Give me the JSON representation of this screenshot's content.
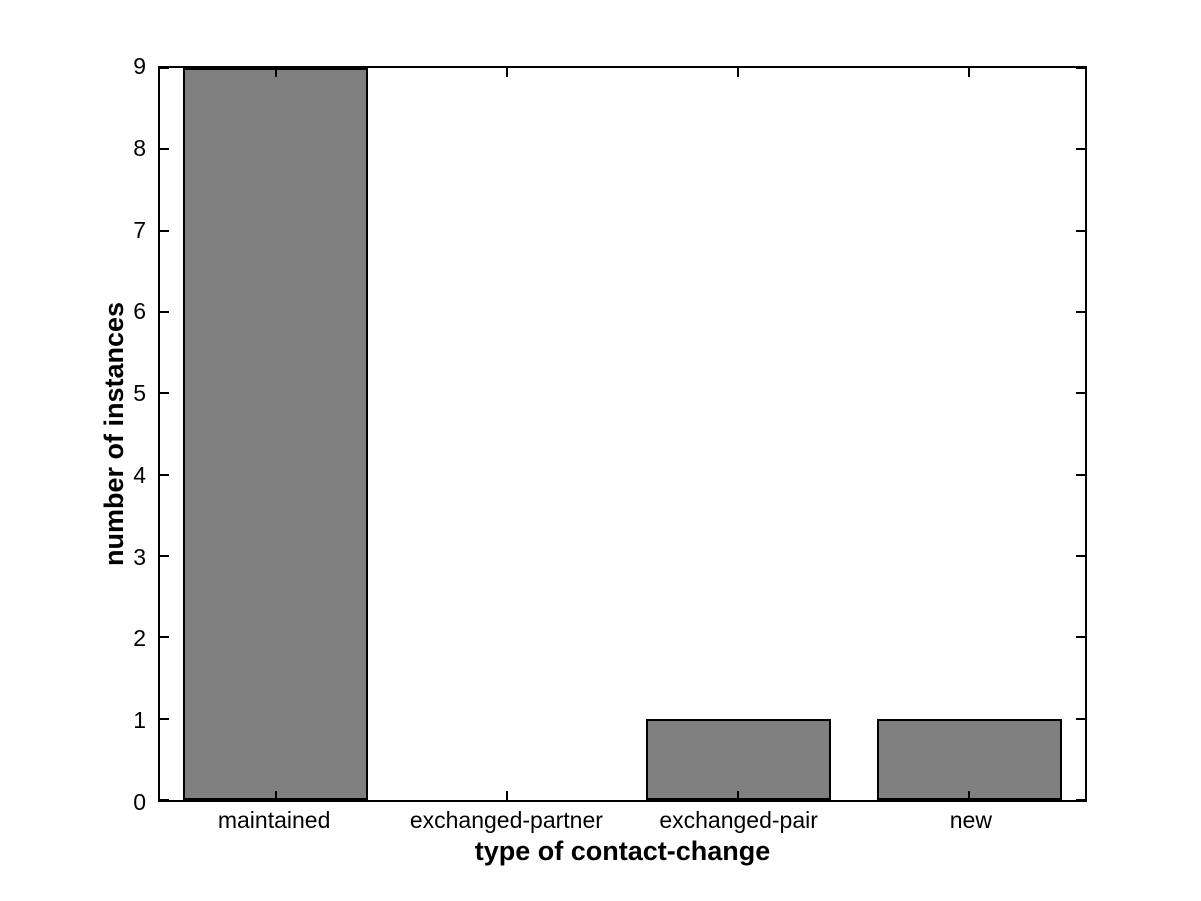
{
  "figure": {
    "background_color": "#ffffff",
    "text_color": "#000000",
    "axis_color": "#000000"
  },
  "chart_data": {
    "type": "bar",
    "categories": [
      "maintained",
      "exchanged-partner",
      "exchanged-pair",
      "new"
    ],
    "values": [
      9,
      0,
      1,
      1
    ],
    "title": "",
    "xlabel": "type of contact-change",
    "ylabel": "number of instances",
    "ylim": [
      0,
      9
    ],
    "yticks": [
      0,
      1,
      2,
      3,
      4,
      5,
      6,
      7,
      8,
      9
    ],
    "bar_color": "#808080",
    "bar_edge_color": "#000000",
    "bar_width_fraction": 0.8,
    "grid": false,
    "legend": null,
    "tick_direction": "in",
    "box": true
  }
}
